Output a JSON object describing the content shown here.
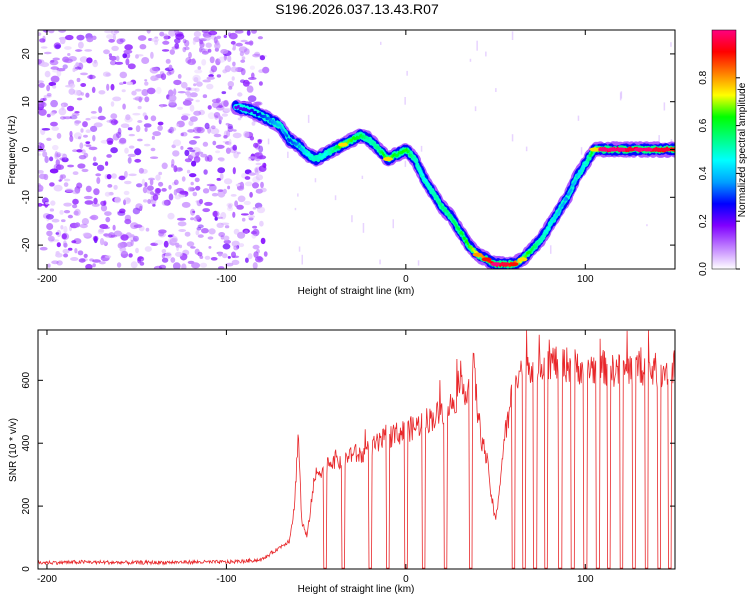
{
  "title": "S196.2026.037.13.43.R07",
  "chart_data": [
    {
      "type": "heatmap",
      "xlabel": "Height of straight line (km)",
      "ylabel": "Frequency (Hz)",
      "xlim": [
        -205,
        150
      ],
      "ylim": [
        -25,
        25
      ],
      "xticks": [
        -200,
        -100,
        0,
        100
      ],
      "yticks": [
        -20,
        -10,
        0,
        10,
        20
      ],
      "colorbar": {
        "label": "Normalized spectral amplitude",
        "range": [
          0.0,
          1.0
        ],
        "ticks": [
          "0.0",
          "0.2",
          "0.4",
          "0.6",
          "0.8"
        ],
        "colormap": [
          "#ffffff",
          "#c080ff",
          "#8000ff",
          "#0000ff",
          "#00a0ff",
          "#00ffff",
          "#00ff80",
          "#00ff00",
          "#ffff00",
          "#ff8000",
          "#ff0000",
          "#ff0080"
        ]
      },
      "noise_region_x": [
        -205,
        -78
      ],
      "ridge": {
        "x": [
          -95,
          -85,
          -80,
          -75,
          -70,
          -65,
          -60,
          -55,
          -50,
          -45,
          -40,
          -35,
          -30,
          -25,
          -20,
          -15,
          -10,
          -5,
          0,
          5,
          10,
          15,
          20,
          25,
          30,
          35,
          40,
          45,
          50,
          55,
          60,
          65,
          70,
          75,
          80,
          85,
          90,
          95,
          100,
          105,
          110,
          115,
          120,
          125,
          130,
          135,
          140,
          145,
          150
        ],
        "y": [
          9,
          8,
          7,
          6,
          5,
          2,
          1,
          -1,
          -2,
          -1,
          0,
          1,
          2,
          3,
          2,
          0,
          -2,
          -1,
          0,
          -2,
          -6,
          -9,
          -12,
          -14,
          -17,
          -20,
          -22,
          -23,
          -24,
          -24,
          -24,
          -23,
          -21,
          -19,
          -16,
          -13,
          -10,
          -6,
          -3,
          0,
          0,
          0,
          0,
          0,
          0,
          0,
          0,
          0,
          0
        ],
        "amplitude": [
          0.2,
          0.25,
          0.3,
          0.35,
          0.4,
          0.3,
          0.35,
          0.45,
          0.5,
          0.45,
          0.55,
          0.7,
          0.65,
          0.6,
          0.5,
          0.55,
          0.7,
          0.6,
          0.65,
          0.5,
          0.45,
          0.5,
          0.55,
          0.55,
          0.6,
          0.65,
          0.75,
          0.85,
          0.95,
          0.9,
          0.85,
          0.7,
          0.6,
          0.5,
          0.45,
          0.4,
          0.35,
          0.4,
          0.45,
          0.7,
          0.95,
          0.95,
          0.95,
          0.9,
          0.95,
          0.95,
          0.9,
          0.9,
          0.85
        ]
      }
    },
    {
      "type": "line",
      "xlabel": "Height of straight line (km)",
      "ylabel": "SNR (10 * v/v)",
      "xlim": [
        -205,
        150
      ],
      "ylim": [
        0,
        760
      ],
      "xticks": [
        -200,
        -100,
        0,
        100
      ],
      "yticks": [
        0,
        200,
        400,
        600
      ],
      "color": "#e8272a",
      "series": [
        {
          "x": [
            -205,
            -180,
            -150,
            -120,
            -100,
            -90,
            -80,
            -75,
            -70,
            -65,
            -62,
            -60,
            -58,
            -55,
            -52,
            -50,
            -45,
            -40,
            -35,
            -30,
            -25,
            -20,
            -15,
            -10,
            -5,
            0,
            5,
            10,
            15,
            20,
            25,
            30,
            35,
            38,
            40,
            42,
            45,
            48,
            50,
            52,
            55,
            58,
            60,
            65,
            70,
            80,
            90,
            100,
            110,
            120,
            130,
            140,
            150
          ],
          "y": [
            20,
            22,
            20,
            22,
            22,
            25,
            30,
            50,
            70,
            90,
            200,
            440,
            150,
            100,
            250,
            300,
            330,
            350,
            340,
            370,
            360,
            380,
            400,
            420,
            430,
            440,
            450,
            470,
            480,
            500,
            520,
            560,
            580,
            640,
            500,
            420,
            350,
            220,
            150,
            250,
            420,
            500,
            620,
            640,
            650,
            660,
            650,
            640,
            640,
            630,
            640,
            630,
            640
          ]
        }
      ],
      "dropouts_x": [
        -45,
        -35,
        -20,
        -10,
        0,
        10,
        22,
        36,
        60,
        66,
        72,
        78,
        86,
        93,
        100,
        107,
        113,
        120,
        127,
        134,
        141,
        147
      ]
    }
  ]
}
